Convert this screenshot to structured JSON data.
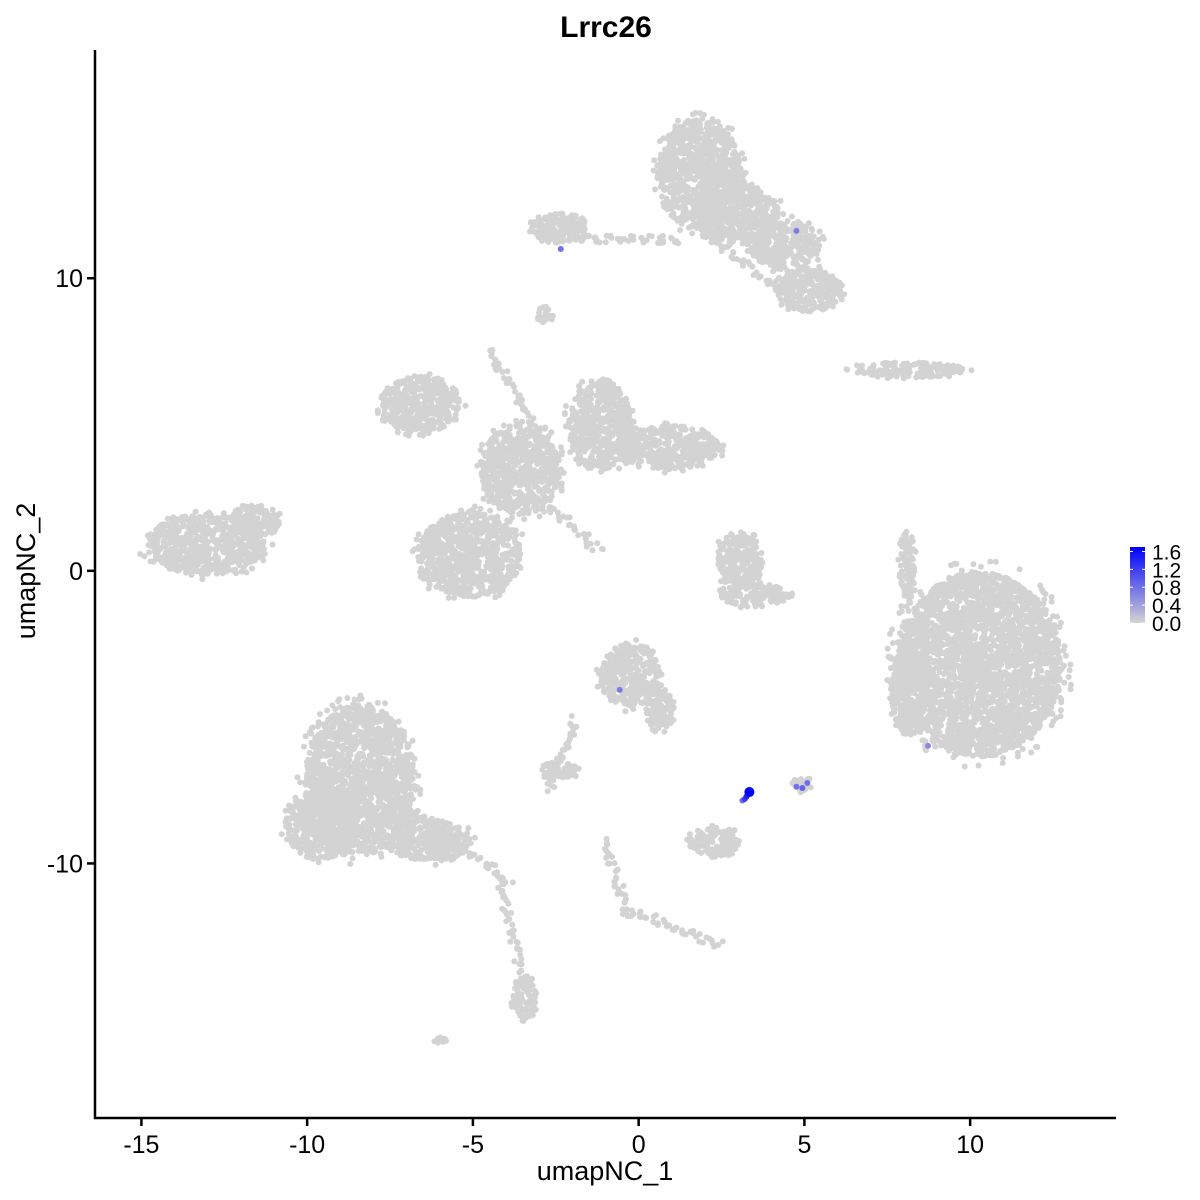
{
  "chart_data": {
    "type": "scatter",
    "title": "Lrrc26",
    "xlabel": "umapNC_1",
    "ylabel": "umapNC_2",
    "xlim": [
      -16.4,
      14.4
    ],
    "ylim": [
      -18.7,
      17.8
    ],
    "xticks": [
      -15,
      -10,
      -5,
      0,
      5,
      10
    ],
    "yticks": [
      -10,
      0,
      10
    ],
    "grid": false,
    "colors": {
      "low": "#d3d3d3",
      "high": "#0000ff"
    },
    "colorbar": {
      "range": [
        0,
        1.7
      ],
      "ticks": [
        "0.0",
        "0.4",
        "0.8",
        "1.2",
        "1.6"
      ],
      "placement": "right"
    },
    "background_cells_expression": 0,
    "background_clusters": [
      {
        "cx": -13.07,
        "cy": 0.89,
        "rx": 1.81,
        "ry": 1.03
      },
      {
        "cx": -11.57,
        "cy": 1.74,
        "rx": 0.75,
        "ry": 0.51
      },
      {
        "cx": -6.6,
        "cy": 5.68,
        "rx": 1.2,
        "ry": 0.96
      },
      {
        "cx": -5.09,
        "cy": 0.55,
        "rx": 1.57,
        "ry": 1.44
      },
      {
        "cx": -1.17,
        "cy": 4.99,
        "rx": 0.96,
        "ry": 1.54
      },
      {
        "cx": 0.93,
        "cy": 4.21,
        "rx": 1.5,
        "ry": 0.75
      },
      {
        "cx": -3.58,
        "cy": 3.45,
        "rx": 1.2,
        "ry": 1.54
      },
      {
        "cx": 1.84,
        "cy": 13.54,
        "rx": 1.27,
        "ry": 1.88
      },
      {
        "cx": -2.38,
        "cy": 11.73,
        "rx": 0.84,
        "ry": 0.51
      },
      {
        "cx": 5.15,
        "cy": 9.61,
        "rx": 0.96,
        "ry": 0.75
      },
      {
        "cx": 4.4,
        "cy": 11.15,
        "rx": 1.05,
        "ry": 0.85
      },
      {
        "cx": 3.04,
        "cy": 12.17,
        "rx": 1.2,
        "ry": 1.03
      },
      {
        "cx": -2.83,
        "cy": 8.75,
        "rx": 0.24,
        "ry": 0.27
      },
      {
        "cx": 8.16,
        "cy": 6.87,
        "rx": 1.66,
        "ry": 0.27
      },
      {
        "cx": 10.27,
        "cy": -3.21,
        "rx": 2.47,
        "ry": 3.15
      },
      {
        "cx": 8.16,
        "cy": -4.07,
        "rx": 0.54,
        "ry": 1.54
      },
      {
        "cx": 8.1,
        "cy": 0.2,
        "rx": 0.24,
        "ry": 1.2
      },
      {
        "cx": 3.04,
        "cy": 0.38,
        "rx": 0.66,
        "ry": 0.96
      },
      {
        "cx": 3.49,
        "cy": -0.82,
        "rx": 1.05,
        "ry": 0.41
      },
      {
        "cx": -0.27,
        "cy": -3.56,
        "rx": 0.9,
        "ry": 1.09
      },
      {
        "cx": 0.63,
        "cy": -4.75,
        "rx": 0.45,
        "ry": 0.68
      },
      {
        "cx": -2.38,
        "cy": -6.8,
        "rx": 0.54,
        "ry": 0.34
      },
      {
        "cx": -8.4,
        "cy": -7.15,
        "rx": 1.66,
        "ry": 2.56
      },
      {
        "cx": -9.6,
        "cy": -8.68,
        "rx": 1.05,
        "ry": 1.2
      },
      {
        "cx": -6.3,
        "cy": -9.2,
        "rx": 1.2,
        "ry": 0.75
      },
      {
        "cx": 2.29,
        "cy": -9.26,
        "rx": 0.75,
        "ry": 0.51
      },
      {
        "cx": 4.94,
        "cy": -7.32,
        "rx": 0.3,
        "ry": 0.24
      },
      {
        "cx": -3.43,
        "cy": -14.67,
        "rx": 0.36,
        "ry": 0.75
      },
      {
        "cx": -5.99,
        "cy": -16.1,
        "rx": 0.18,
        "ry": 0.14
      }
    ],
    "background_strands": [
      {
        "from": [
          -4.49,
          7.56
        ],
        "to": [
          -2.38,
          3.45
        ]
      },
      {
        "from": [
          -2.83,
          2.43
        ],
        "to": [
          -1.17,
          0.65
        ]
      },
      {
        "from": [
          -7.35,
          -7.83
        ],
        "to": [
          -3.89,
          -10.56
        ]
      },
      {
        "from": [
          -4.19,
          -10.56
        ],
        "to": [
          -3.43,
          -14.25
        ]
      },
      {
        "from": [
          -1.93,
          -5.09
        ],
        "to": [
          -2.68,
          -7.49
        ]
      },
      {
        "from": [
          -1.02,
          -9.2
        ],
        "to": [
          -0.27,
          -11.93
        ]
      },
      {
        "from": [
          -0.27,
          -11.59
        ],
        "to": [
          2.44,
          -12.79
        ]
      },
      {
        "from": [
          -1.78,
          11.32
        ],
        "to": [
          1.23,
          11.32
        ]
      },
      {
        "from": [
          1.84,
          11.66
        ],
        "to": [
          4.25,
          9.61
        ]
      }
    ],
    "expressed_points": [
      {
        "x": -2.35,
        "y": 11.0,
        "value": 0.8
      },
      {
        "x": 4.76,
        "y": 11.62,
        "value": 0.7
      },
      {
        "x": -0.57,
        "y": -4.07,
        "value": 0.7
      },
      {
        "x": 8.73,
        "y": -5.98,
        "value": 0.6
      },
      {
        "x": 3.13,
        "y": -7.85,
        "value": 0.8
      },
      {
        "x": 3.2,
        "y": -7.8,
        "value": 1.2
      },
      {
        "x": 3.25,
        "y": -7.72,
        "value": 1.4
      },
      {
        "x": 4.76,
        "y": -7.38,
        "value": 0.8
      },
      {
        "x": 4.94,
        "y": -7.42,
        "value": 0.9
      },
      {
        "x": 5.09,
        "y": -7.25,
        "value": 0.8
      },
      {
        "x": 3.34,
        "y": -7.56,
        "value": 1.7
      }
    ]
  }
}
